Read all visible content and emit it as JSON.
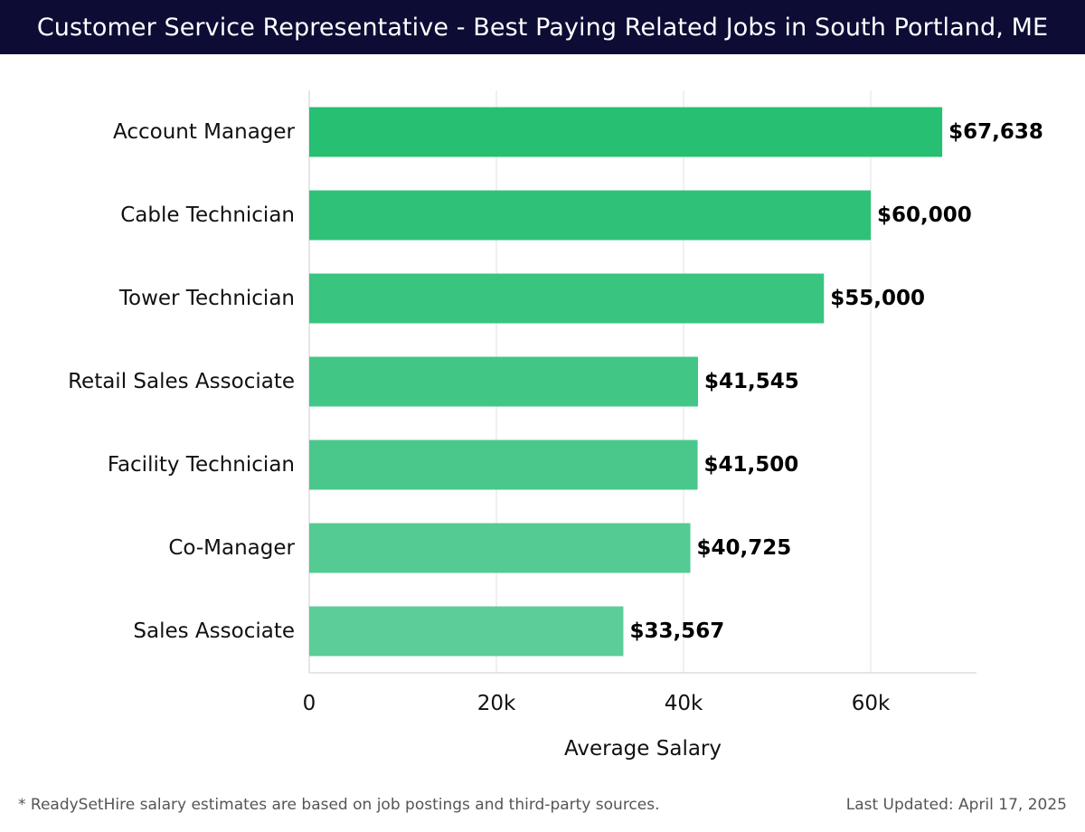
{
  "chart_data": {
    "type": "bar",
    "orientation": "horizontal",
    "title": "Customer Service Representative - Best Paying Related Jobs in South Portland, ME",
    "categories": [
      "Account Manager",
      "Cable Technician",
      "Tower Technician",
      "Retail Sales Associate",
      "Facility Technician",
      "Co-Manager",
      "Sales Associate"
    ],
    "values": [
      67638,
      60000,
      55000,
      41545,
      41500,
      40725,
      33567
    ],
    "value_labels": [
      "$67,638",
      "$60,000",
      "$55,000",
      "$41,545",
      "$41,500",
      "$40,725",
      "$33,567"
    ],
    "xlabel": "Average Salary",
    "ylabel": "",
    "xlim": [
      0,
      71300
    ],
    "xticks": [
      0,
      20000,
      40000,
      60000
    ],
    "xtick_labels": [
      "0",
      "20k",
      "40k",
      "60k"
    ],
    "grid": true,
    "colors": {
      "bar_top": "#27bf72",
      "bar_bottom": "#5ccd98",
      "gridline": "#e2e2e2",
      "axis": "#cccccc",
      "title_bg": "#0c0c35"
    }
  },
  "footer": {
    "note": "* ReadySetHire salary estimates are based on job postings and third-party sources.",
    "updated": "Last Updated: April 17, 2025"
  }
}
